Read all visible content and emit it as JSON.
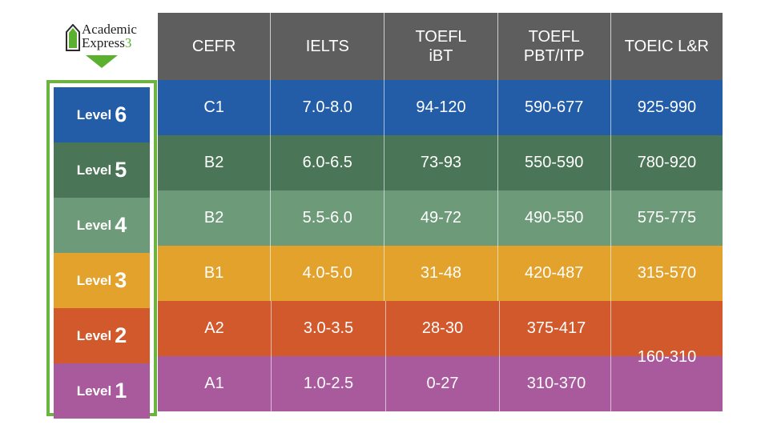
{
  "logo": {
    "line1": "Academic",
    "line2": "Express",
    "line2_num": "3"
  },
  "headers": [
    "CEFR",
    "IELTS",
    "TOEFL\niBT",
    "TOEFL\nPBT/ITP",
    "TOEIC L&R"
  ],
  "levels": [
    {
      "word": "Level",
      "num": "6",
      "color": "#235da8",
      "cefr": "C1",
      "ielts": "7.0-8.0",
      "toefl_ibt": "94-120",
      "toefl_pbt": "590-677",
      "toeic": "925-990"
    },
    {
      "word": "Level",
      "num": "5",
      "color": "#4a7556",
      "cefr": "B2",
      "ielts": "6.0-6.5",
      "toefl_ibt": "73-93",
      "toefl_pbt": "550-590",
      "toeic": "780-920"
    },
    {
      "word": "Level",
      "num": "4",
      "color": "#6d9a78",
      "cefr": "B2",
      "ielts": "5.5-6.0",
      "toefl_ibt": "49-72",
      "toefl_pbt": "490-550",
      "toeic": "575-775"
    },
    {
      "word": "Level",
      "num": "3",
      "color": "#e3a22b",
      "cefr": "B1",
      "ielts": "4.0-5.0",
      "toefl_ibt": "31-48",
      "toefl_pbt": "420-487",
      "toeic": "315-570"
    },
    {
      "word": "Level",
      "num": "2",
      "color": "#d2592c",
      "cefr": "A2",
      "ielts": "3.0-3.5",
      "toefl_ibt": "28-30",
      "toefl_pbt": "375-417"
    },
    {
      "word": "Level",
      "num": "1",
      "color": "#a95a9d",
      "cefr": "A1",
      "ielts": "1.0-2.5",
      "toefl_ibt": "0-27",
      "toefl_pbt": "310-370"
    }
  ],
  "toeic_merged": "160-310",
  "colors": {
    "header_bg": "#5e5e5e",
    "level_border": "#6cb33f",
    "logo_accent": "#5bb030"
  },
  "chart_data": {
    "type": "table",
    "columns": [
      "Level",
      "CEFR",
      "IELTS",
      "TOEFL iBT",
      "TOEFL PBT/ITP",
      "TOEIC L&R"
    ],
    "rows": [
      [
        "Level 6",
        "C1",
        "7.0-8.0",
        "94-120",
        "590-677",
        "925-990"
      ],
      [
        "Level 5",
        "B2",
        "6.0-6.5",
        "73-93",
        "550-590",
        "780-920"
      ],
      [
        "Level 4",
        "B2",
        "5.5-6.0",
        "49-72",
        "490-550",
        "575-775"
      ],
      [
        "Level 3",
        "B1",
        "4.0-5.0",
        "31-48",
        "420-487",
        "315-570"
      ],
      [
        "Level 2",
        "A2",
        "3.0-3.5",
        "28-30",
        "375-417",
        "160-310"
      ],
      [
        "Level 1",
        "A1",
        "1.0-2.5",
        "0-27",
        "310-370",
        "160-310"
      ]
    ]
  }
}
